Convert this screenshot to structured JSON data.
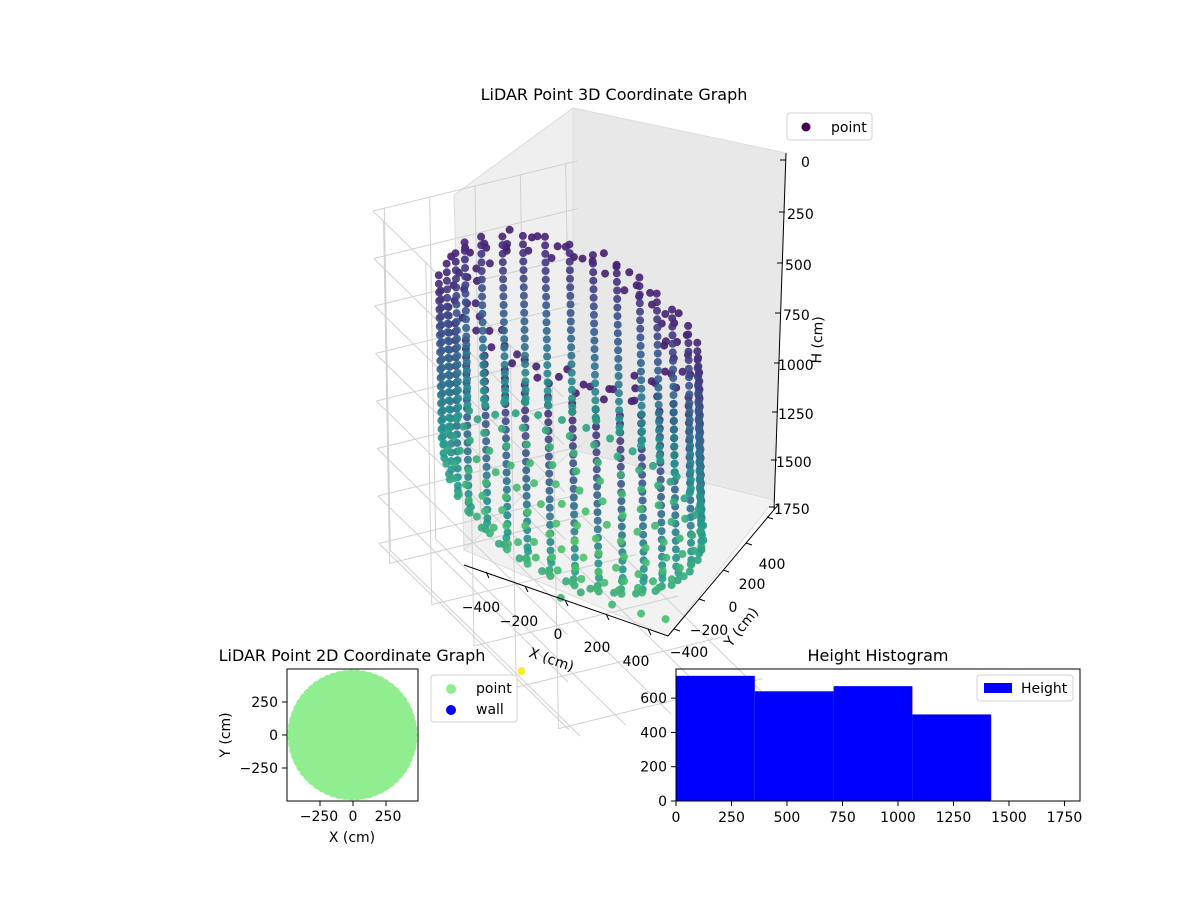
{
  "chart_data": [
    {
      "type": "scatter3d",
      "title": "LiDAR Point 3D Coordinate Graph",
      "xlabel": "X (cm)",
      "ylabel": "Y (cm)",
      "zlabel": "H (cm)",
      "x_ticks": [
        "−400",
        "−200",
        "0",
        "200",
        "400"
      ],
      "y_ticks": [
        "−400",
        "−200",
        "0",
        "200",
        "400"
      ],
      "z_ticks": [
        "0",
        "250",
        "500",
        "750",
        "1000",
        "1250",
        "1500",
        "1750"
      ],
      "xlim": [
        -450,
        450
      ],
      "ylim": [
        -450,
        450
      ],
      "zlim": [
        0,
        1800
      ],
      "z_inverted": true,
      "colormap": "viridis",
      "legend": [
        {
          "label": "point",
          "color": "#440154"
        }
      ],
      "legend_position": "top-right",
      "shape": {
        "radius": 420,
        "z_top": 200,
        "z_bottom": 1380
      },
      "outliers": [
        {
          "x": 150,
          "y": -380,
          "z": 1790
        },
        {
          "x": 420,
          "y": 110,
          "z": 1790
        }
      ]
    },
    {
      "type": "scatter",
      "title": "LiDAR Point 2D Coordinate Graph",
      "xlabel": "X (cm)",
      "ylabel": "Y (cm)",
      "x_ticks": [
        "−250",
        "0",
        "250"
      ],
      "y_ticks": [
        "250",
        "0",
        "−250"
      ],
      "xlim": [
        -500,
        500
      ],
      "ylim": [
        -500,
        500
      ],
      "series": [
        {
          "name": "point",
          "color": "#90ee90",
          "radius": 455
        },
        {
          "name": "wall",
          "color": "#0000ff"
        }
      ],
      "legend_position": "outside-right"
    },
    {
      "type": "histogram",
      "title": "Height Histogram",
      "xlabel": "",
      "ylabel": "",
      "x_ticks": [
        "0",
        "250",
        "500",
        "750",
        "1000",
        "1250",
        "1500",
        "1750"
      ],
      "y_ticks": [
        "0",
        "200",
        "400",
        "600"
      ],
      "xlim": [
        0,
        1820
      ],
      "ylim": [
        0,
        770
      ],
      "bins": [
        {
          "start": 0,
          "end": 355,
          "count": 730
        },
        {
          "start": 355,
          "end": 710,
          "count": 640
        },
        {
          "start": 710,
          "end": 1065,
          "count": 670
        },
        {
          "start": 1065,
          "end": 1420,
          "count": 505
        },
        {
          "start": 1420,
          "end": 1775,
          "count": 0
        }
      ],
      "color": "#0000ff",
      "legend": [
        {
          "label": "Height",
          "color": "#0000ff"
        }
      ],
      "legend_position": "top-right"
    }
  ]
}
